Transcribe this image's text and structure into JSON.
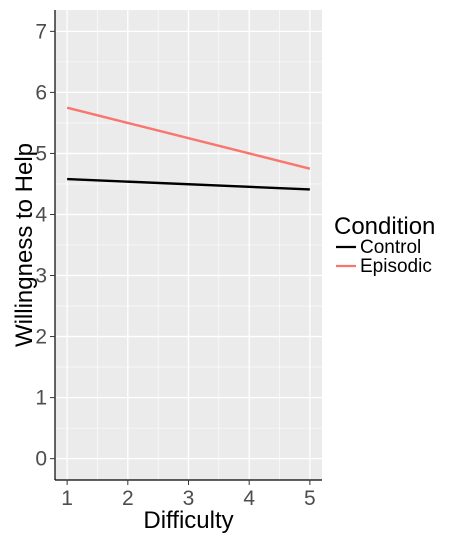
{
  "chart_data": {
    "type": "line",
    "xlabel": "Difficulty",
    "ylabel": "Willingness to Help",
    "xlim": [
      0.8,
      5.2
    ],
    "ylim": [
      -0.35,
      7.35
    ],
    "x_ticks": [
      1,
      2,
      3,
      4,
      5
    ],
    "y_ticks": [
      0,
      1,
      2,
      3,
      4,
      5,
      6,
      7
    ],
    "grid": true,
    "legend": {
      "title": "Condition",
      "position": "right"
    },
    "x": [
      1,
      5
    ],
    "series": [
      {
        "name": "Control",
        "values": [
          4.58,
          4.41
        ],
        "color": "#000000"
      },
      {
        "name": "Episodic",
        "values": [
          5.75,
          4.75
        ],
        "color": "#f8766d"
      }
    ]
  },
  "colors": {
    "panel_background": "#ebebeb",
    "grid_major": "#ffffff",
    "axis_line": "#000000",
    "tick_text": "#4d4d4d"
  }
}
